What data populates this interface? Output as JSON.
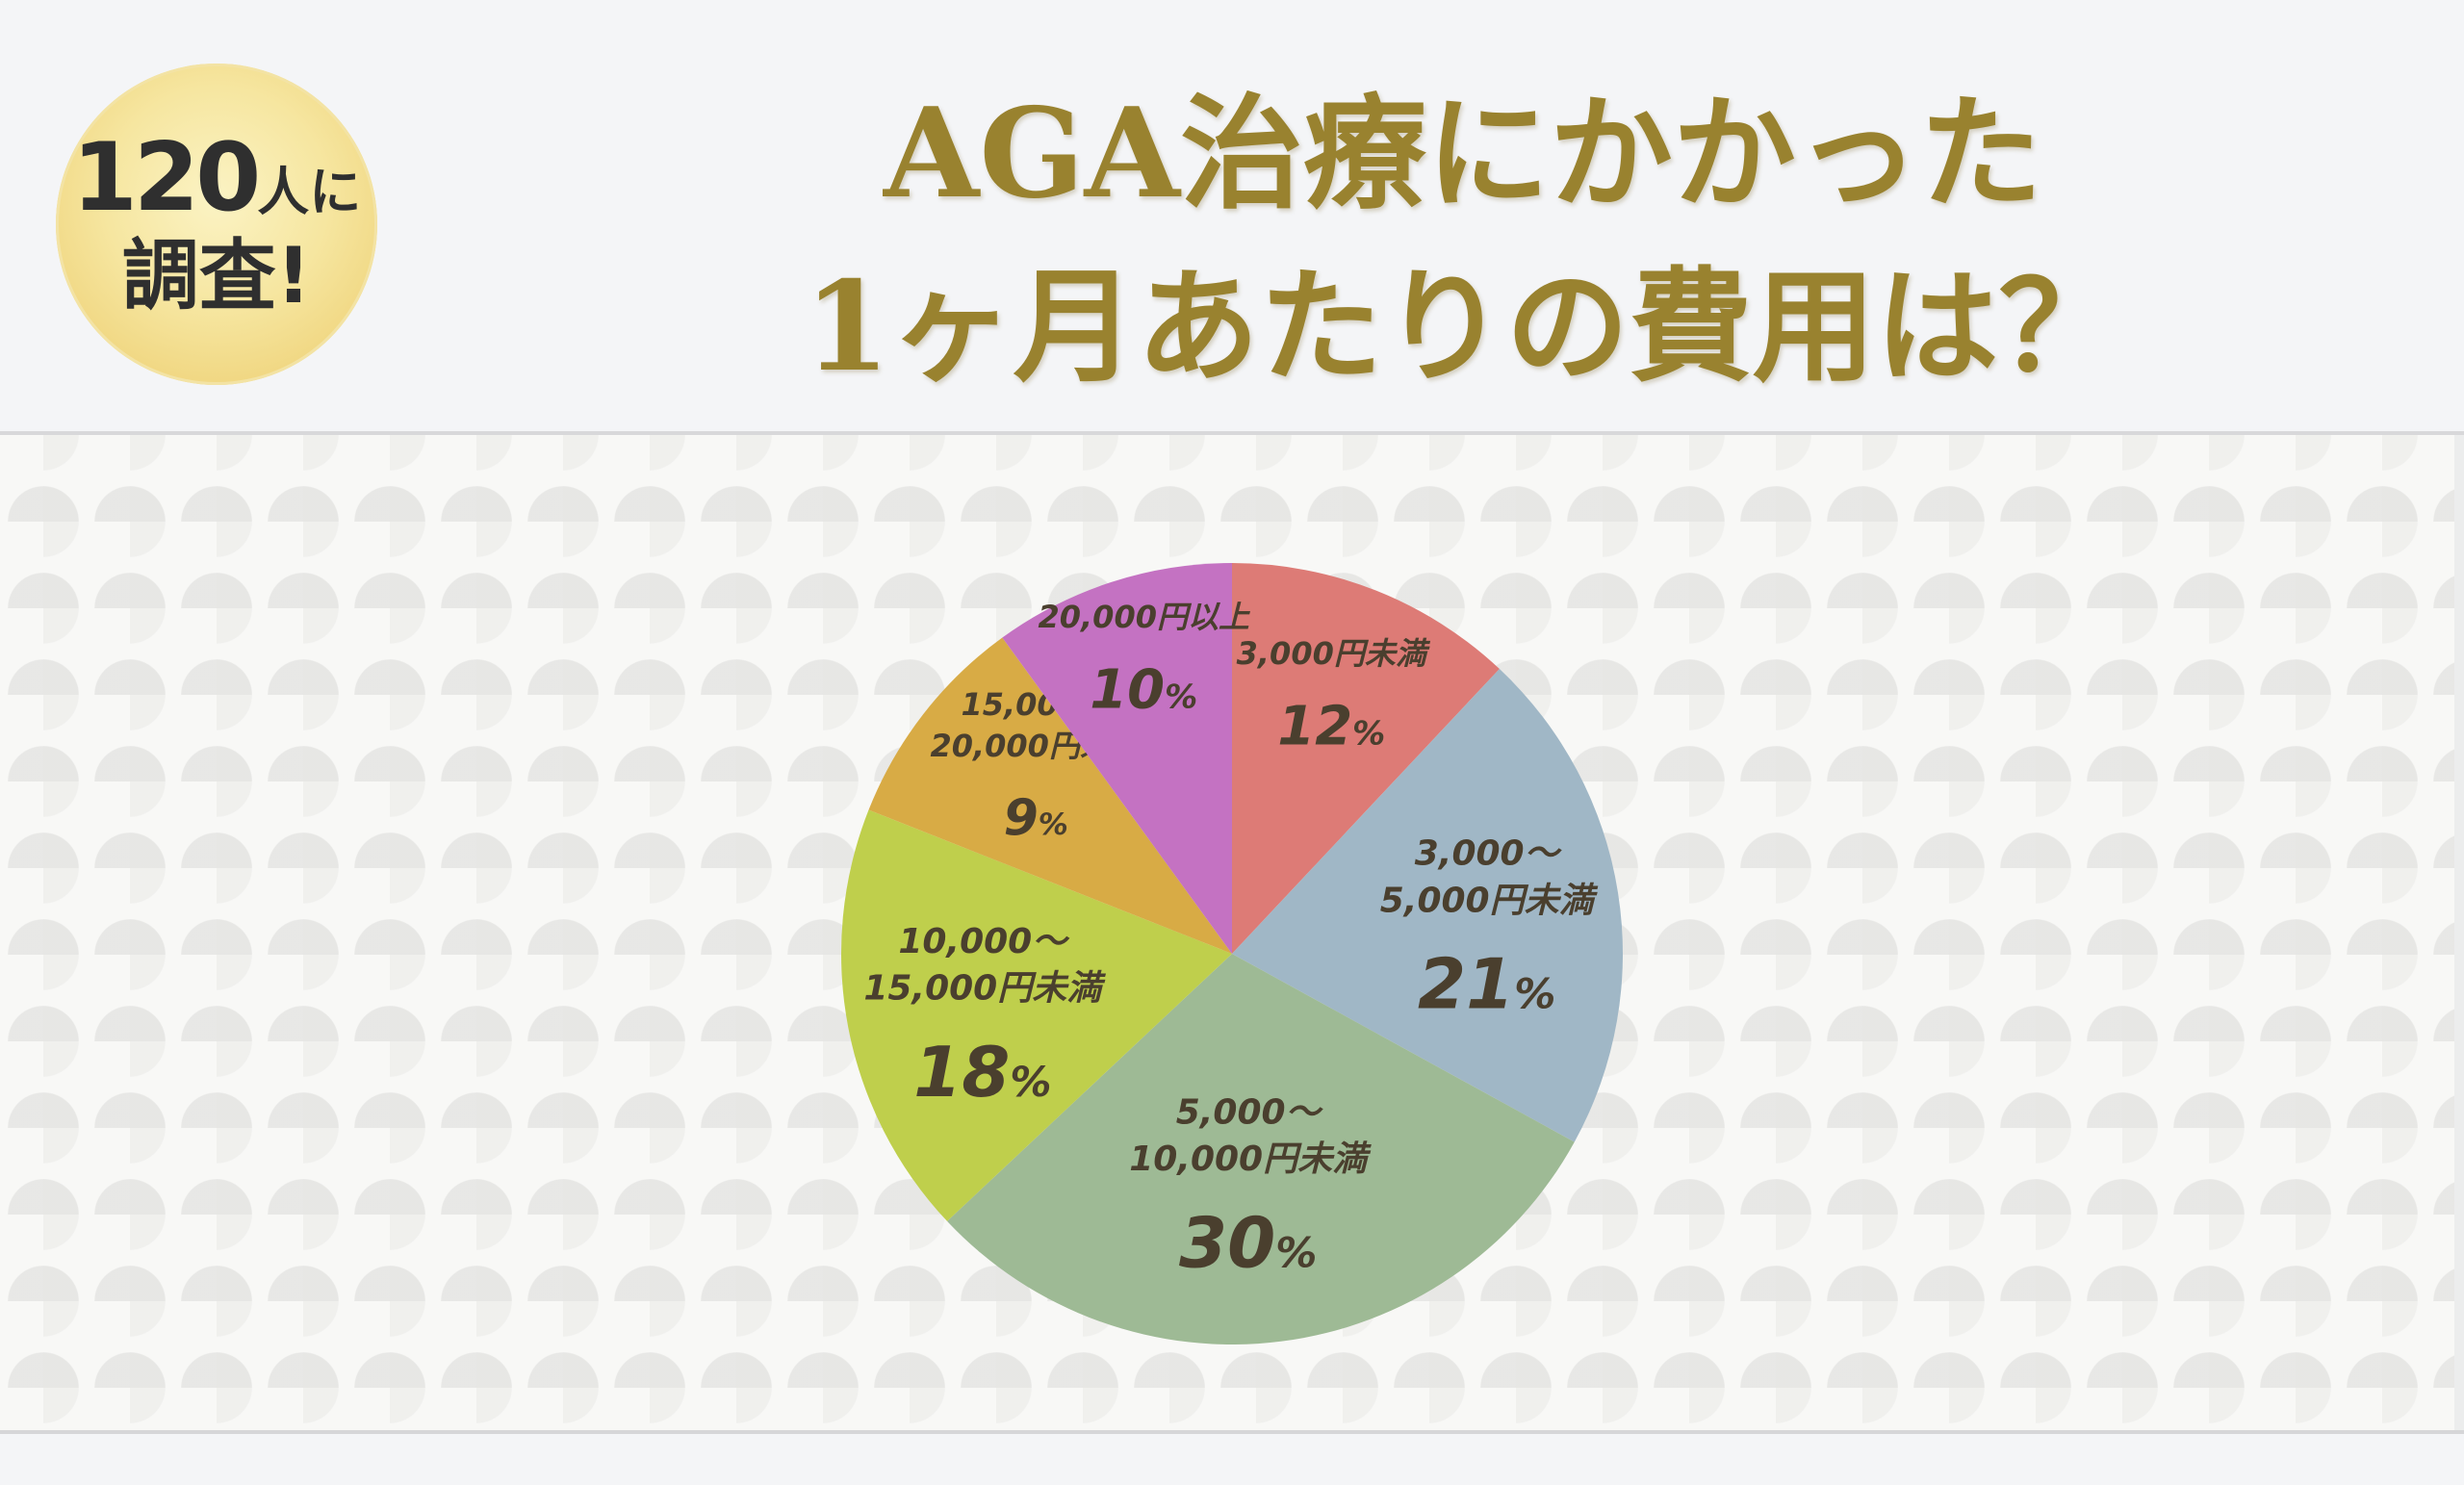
{
  "badge": {
    "count": "120",
    "count_suffix": "人に",
    "line2": "調査!"
  },
  "title": {
    "line1": "AGA治療にかかった",
    "line2": "1ヶ月あたりの費用は？"
  },
  "chart_data": {
    "type": "pie",
    "unit": "%",
    "slices": [
      {
        "label_lines": [
          "3,000円未満"
        ],
        "value": 12,
        "color": "#dd7b76"
      },
      {
        "label_lines": [
          "3,000～",
          "5,000円未満"
        ],
        "value": 21,
        "color": "#a0b7c6"
      },
      {
        "label_lines": [
          "5,000～",
          "10,000円未満"
        ],
        "value": 30,
        "color": "#9eba95"
      },
      {
        "label_lines": [
          "10,000～",
          "15,000円未満"
        ],
        "value": 18,
        "color": "#bfcf4c"
      },
      {
        "label_lines": [
          "15,000～",
          "20,000円未満"
        ],
        "value": 9,
        "color": "#d8ab45"
      },
      {
        "label_lines": [
          "20,000円以上"
        ],
        "value": 10,
        "color": "#c472c2"
      }
    ]
  }
}
